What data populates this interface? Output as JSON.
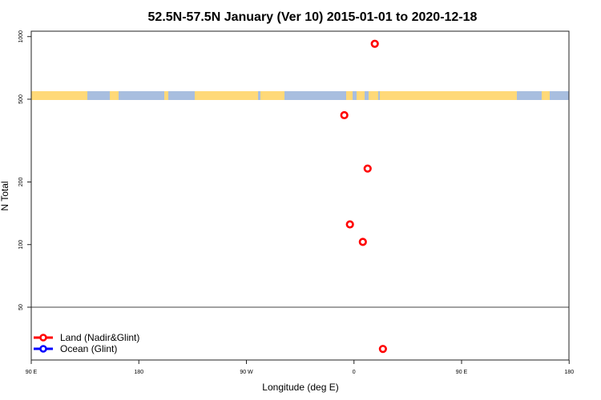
{
  "chart_data": {
    "type": "scatter",
    "title": "52.5N-57.5N January (Ver 10)   2015-01-01 to 2020-12-18",
    "xlabel": "Longitude (deg E)",
    "ylabel": "N Total",
    "xlim": [
      90,
      450
    ],
    "x_ticks": [
      {
        "value": 90,
        "label": "90 E"
      },
      {
        "value": 180,
        "label": "180"
      },
      {
        "value": 270,
        "label": "90 W"
      },
      {
        "value": 360,
        "label": "0"
      },
      {
        "value": 450,
        "label": "90 E"
      },
      {
        "value": 540,
        "label": "180"
      }
    ],
    "y_scale": "log",
    "ylim": [
      28,
      1050
    ],
    "y_ticks": [
      {
        "value": 50,
        "label": "50"
      },
      {
        "value": 100,
        "label": "100"
      },
      {
        "value": 200,
        "label": "200"
      },
      {
        "value": 500,
        "label": "500"
      },
      {
        "value": 1000,
        "label": "1000"
      }
    ],
    "reference_line_y": 50,
    "background_strip": {
      "land_color": "#ffd978",
      "ocean_color": "#a8bedf"
    },
    "legend_position": "bottom-left",
    "series": [
      {
        "name": "Land (Nadir&Glint)",
        "color": "#ff0000",
        "points": [
          {
            "lon": 17.4,
            "n": 923
          },
          {
            "lon": -8.1,
            "n": 419
          },
          {
            "lon": 11.4,
            "n": 232
          },
          {
            "lon": -3.4,
            "n": 125
          },
          {
            "lon": 7.4,
            "n": 103
          },
          {
            "lon": 24.2,
            "n": 31.5
          }
        ]
      },
      {
        "name": "Ocean (Glint)",
        "color": "#0000ff",
        "points": []
      }
    ]
  }
}
